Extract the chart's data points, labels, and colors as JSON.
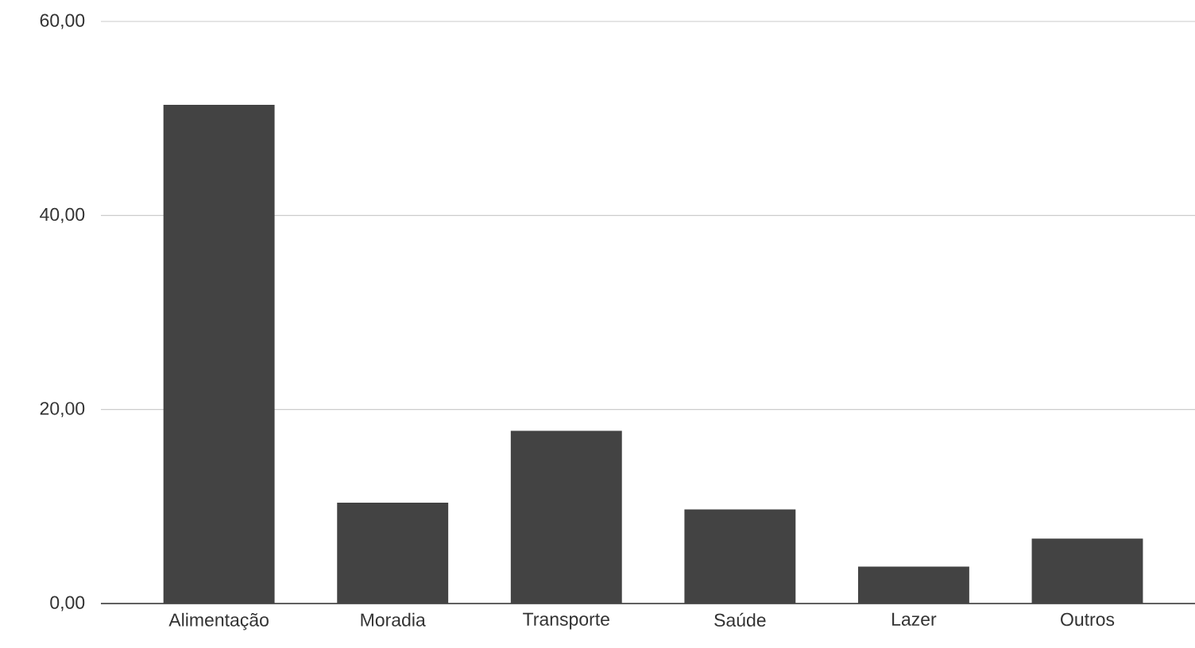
{
  "chart_data": {
    "type": "bar",
    "categories": [
      "Alimentação",
      "Moradia",
      "Transporte",
      "Saúde",
      "Lazer",
      "Outros"
    ],
    "values": [
      51.4,
      10.4,
      17.8,
      9.7,
      3.8,
      6.7
    ],
    "color": "#434343",
    "ylim": [
      0,
      60
    ],
    "yticks": [
      {
        "value": 0,
        "label": "0,00"
      },
      {
        "value": 20,
        "label": "20,00"
      },
      {
        "value": 40,
        "label": "40,00"
      },
      {
        "value": 60,
        "label": "60,00"
      }
    ],
    "grid": "y"
  }
}
